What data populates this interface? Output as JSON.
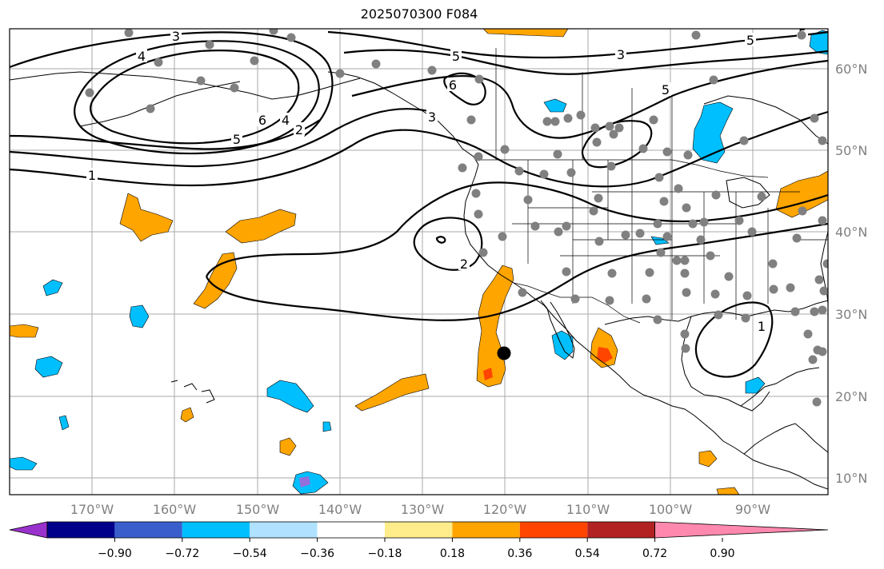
{
  "title": "2025070300 F084",
  "map": {
    "lon_labels": [
      "170°W",
      "160°W",
      "150°W",
      "140°W",
      "130°W",
      "120°W",
      "110°W",
      "100°W",
      "90°W"
    ],
    "lat_labels": [
      "60°N",
      "50°N",
      "40°N",
      "30°N",
      "20°N",
      "10°N"
    ],
    "contour_labels": [
      "4",
      "3",
      "6",
      "5",
      "4",
      "2",
      "1",
      "5",
      "3",
      "6",
      "5",
      "3",
      "5",
      "5",
      "2",
      "1"
    ],
    "colors": {
      "coast": "#000000",
      "grid": "#a0a0a0",
      "negative_fill": "#00bfff",
      "positive_fill": "#ffa500",
      "stations": "#808080",
      "marker": "#000000"
    }
  },
  "colorbar": {
    "ticks": [
      "−0.90",
      "−0.72",
      "−0.54",
      "−0.36",
      "−0.18",
      "0.18",
      "0.36",
      "0.54",
      "0.72",
      "0.90"
    ],
    "colors": [
      "#9932cc",
      "#00008b",
      "#3a5fcd",
      "#00bfff",
      "#b0e2ff",
      "#ffffff",
      "#ffec8b",
      "#ffa500",
      "#ff4500",
      "#b22222",
      "#ff89ae"
    ]
  }
}
